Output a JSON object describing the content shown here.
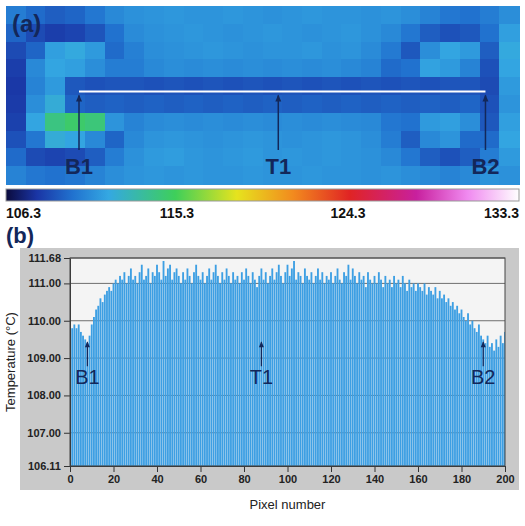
{
  "chart_data": [
    {
      "type": "heatmap",
      "title": "(a)",
      "cells": [
        [
          110.2,
          109.6,
          109.2,
          109.4,
          110.0,
          110.6,
          110.9,
          111.0,
          111.1,
          111.0,
          111.0,
          111.1,
          111.0,
          110.9,
          111.0,
          111.1,
          111.0,
          111.0,
          110.9,
          111.0,
          110.8,
          110.4,
          110.0,
          109.8,
          110.2,
          110.8
        ],
        [
          109.4,
          108.6,
          108.2,
          108.4,
          108.9,
          109.8,
          110.7,
          110.9,
          111.0,
          111.1,
          111.0,
          110.9,
          111.0,
          111.1,
          111.0,
          110.9,
          111.0,
          111.1,
          110.9,
          110.6,
          110.0,
          109.2,
          108.8,
          109.0,
          109.8,
          111.4
        ],
        [
          108.6,
          109.4,
          111.4,
          111.8,
          111.2,
          109.6,
          110.3,
          110.8,
          110.9,
          111.0,
          111.1,
          111.0,
          110.9,
          111.0,
          111.0,
          111.1,
          110.9,
          111.0,
          110.7,
          110.1,
          109.0,
          110.8,
          111.6,
          111.2,
          109.2,
          111.8
        ],
        [
          108.2,
          110.6,
          111.6,
          111.4,
          110.8,
          110.2,
          110.2,
          110.6,
          110.8,
          110.7,
          110.8,
          110.7,
          110.8,
          110.7,
          110.8,
          110.7,
          110.8,
          110.6,
          110.4,
          109.6,
          109.8,
          111.5,
          111.2,
          110.4,
          108.8,
          111.6
        ],
        [
          108.0,
          110.4,
          111.2,
          109.0,
          108.8,
          108.9,
          108.9,
          108.8,
          108.9,
          108.8,
          108.9,
          108.8,
          108.9,
          108.8,
          108.9,
          108.8,
          108.9,
          108.8,
          108.9,
          108.8,
          108.9,
          108.8,
          108.9,
          108.9,
          108.6,
          111.2
        ],
        [
          108.1,
          110.8,
          112.0,
          109.4,
          109.2,
          109.3,
          109.2,
          109.3,
          109.2,
          109.3,
          109.2,
          109.3,
          109.2,
          109.3,
          109.2,
          109.3,
          109.2,
          109.3,
          109.2,
          109.3,
          109.2,
          109.3,
          109.2,
          109.4,
          108.8,
          111.0
        ],
        [
          108.3,
          111.6,
          114.2,
          114.8,
          114.4,
          111.0,
          110.4,
          110.7,
          110.8,
          110.7,
          110.8,
          110.7,
          110.8,
          110.7,
          110.8,
          110.7,
          110.8,
          110.7,
          110.6,
          110.0,
          109.8,
          111.2,
          111.4,
          110.8,
          109.0,
          111.4
        ],
        [
          108.8,
          110.0,
          112.0,
          111.6,
          110.6,
          109.4,
          110.6,
          111.0,
          111.1,
          111.0,
          110.9,
          111.0,
          111.1,
          111.0,
          110.9,
          111.0,
          111.1,
          111.0,
          110.8,
          110.2,
          109.2,
          110.6,
          111.0,
          109.6,
          109.6,
          111.6
        ],
        [
          109.6,
          108.6,
          108.4,
          108.6,
          109.2,
          110.2,
          110.9,
          111.2,
          111.3,
          111.1,
          111.0,
          111.1,
          111.2,
          111.0,
          111.1,
          111.0,
          111.1,
          111.0,
          110.9,
          110.6,
          110.0,
          109.2,
          108.8,
          109.2,
          110.2,
          111.2
        ],
        [
          110.4,
          110.0,
          109.8,
          110.0,
          110.4,
          110.8,
          111.0,
          111.1,
          111.0,
          111.1,
          111.0,
          111.0,
          111.1,
          111.0,
          111.0,
          111.1,
          111.0,
          111.0,
          110.9,
          111.0,
          110.8,
          110.6,
          110.4,
          110.6,
          111.0,
          110.9
        ]
      ],
      "colorbar_range": [
        106.3,
        133.3
      ],
      "colorbar_ticks": [
        106.3,
        115.3,
        124.3,
        133.3
      ],
      "annotations": [
        {
          "text": "B1",
          "x": 3.7
        },
        {
          "text": "T1",
          "x": 13.8
        },
        {
          "text": "B2",
          "x": 24.3
        }
      ]
    },
    {
      "type": "bar",
      "title": "(b)",
      "xlabel": "Pixel number",
      "ylabel": "Temperature (°C)",
      "color": "#3d9fe3",
      "grid": true,
      "x": [
        0,
        1,
        2,
        3,
        4,
        5,
        6,
        7,
        8,
        9,
        10,
        11,
        12,
        13,
        14,
        15,
        16,
        17,
        18,
        19,
        20,
        21,
        22,
        23,
        24,
        25,
        26,
        27,
        28,
        29,
        30,
        31,
        32,
        33,
        34,
        35,
        36,
        37,
        38,
        39,
        40,
        41,
        42,
        43,
        44,
        45,
        46,
        47,
        48,
        49,
        50,
        51,
        52,
        53,
        54,
        55,
        56,
        57,
        58,
        59,
        60,
        61,
        62,
        63,
        64,
        65,
        66,
        67,
        68,
        69,
        70,
        71,
        72,
        73,
        74,
        75,
        76,
        77,
        78,
        79,
        80,
        81,
        82,
        83,
        84,
        85,
        86,
        87,
        88,
        89,
        90,
        91,
        92,
        93,
        94,
        95,
        96,
        97,
        98,
        99,
        100,
        101,
        102,
        103,
        104,
        105,
        106,
        107,
        108,
        109,
        110,
        111,
        112,
        113,
        114,
        115,
        116,
        117,
        118,
        119,
        120,
        121,
        122,
        123,
        124,
        125,
        126,
        127,
        128,
        129,
        130,
        131,
        132,
        133,
        134,
        135,
        136,
        137,
        138,
        139,
        140,
        141,
        142,
        143,
        144,
        145,
        146,
        147,
        148,
        149,
        150,
        151,
        152,
        153,
        154,
        155,
        156,
        157,
        158,
        159,
        160,
        161,
        162,
        163,
        164,
        165,
        166,
        167,
        168,
        169,
        170,
        171,
        172,
        173,
        174,
        175,
        176,
        177,
        178,
        179,
        180,
        181,
        182,
        183,
        184,
        185,
        186,
        187,
        188,
        189,
        190,
        191,
        192,
        193,
        194,
        195,
        196,
        197,
        198,
        199,
        200
      ],
      "values": [
        109.7,
        109.8,
        109.9,
        109.8,
        109.9,
        109.7,
        109.6,
        109.5,
        109.4,
        109.6,
        109.9,
        110.1,
        110.3,
        110.4,
        110.6,
        110.5,
        110.7,
        110.8,
        110.9,
        110.8,
        111.0,
        111.1,
        111.0,
        111.2,
        111.1,
        111.3,
        111.0,
        111.2,
        111.4,
        111.1,
        111.2,
        111.0,
        111.3,
        111.5,
        111.1,
        111.2,
        111.4,
        111.0,
        111.3,
        111.2,
        111.5,
        111.3,
        111.1,
        111.6,
        111.2,
        111.4,
        111.5,
        111.1,
        111.3,
        111.4,
        111.2,
        111.0,
        111.3,
        111.1,
        111.4,
        111.2,
        111.0,
        111.3,
        111.5,
        111.2,
        111.1,
        111.3,
        111.0,
        111.2,
        111.4,
        111.1,
        111.3,
        111.5,
        111.2,
        111.0,
        111.3,
        111.1,
        111.4,
        111.2,
        111.0,
        111.3,
        111.1,
        111.2,
        111.0,
        111.3,
        111.1,
        111.4,
        111.2,
        111.0,
        111.3,
        111.1,
        110.9,
        111.2,
        111.4,
        111.1,
        111.3,
        111.0,
        111.2,
        111.4,
        111.1,
        111.3,
        111.5,
        111.2,
        111.0,
        111.3,
        111.5,
        111.2,
        111.4,
        111.6,
        111.1,
        111.3,
        111.2,
        111.0,
        111.4,
        111.2,
        111.1,
        111.3,
        111.0,
        111.2,
        111.4,
        111.1,
        111.3,
        111.0,
        111.2,
        111.1,
        111.3,
        111.0,
        111.2,
        111.4,
        111.1,
        111.0,
        111.3,
        111.2,
        111.5,
        111.1,
        111.4,
        111.2,
        111.0,
        111.3,
        111.1,
        111.2,
        110.9,
        111.3,
        111.1,
        111.0,
        111.2,
        111.0,
        111.3,
        111.1,
        110.9,
        111.2,
        111.0,
        111.1,
        110.9,
        111.2,
        111.0,
        111.1,
        110.9,
        111.2,
        111.0,
        110.8,
        111.1,
        110.9,
        111.0,
        110.8,
        111.0,
        110.9,
        110.8,
        111.0,
        110.7,
        110.9,
        110.8,
        110.7,
        110.9,
        110.6,
        110.8,
        110.6,
        110.7,
        110.5,
        110.6,
        110.4,
        110.5,
        110.3,
        110.4,
        110.2,
        110.3,
        110.1,
        110.0,
        110.2,
        109.9,
        110.0,
        109.8,
        109.7,
        109.9,
        109.6,
        109.5,
        109.4,
        109.6,
        109.3,
        109.4,
        109.2,
        109.5,
        109.3,
        109.6,
        109.4,
        109.7
      ],
      "xlim": [
        0,
        200
      ],
      "xticks": [
        0,
        20,
        40,
        60,
        80,
        100,
        120,
        140,
        160,
        180,
        200
      ],
      "ylim": [
        106.11,
        111.68
      ],
      "yticks": [
        106.11,
        {
          "value": 107,
          "label": "107.00"
        },
        {
          "value": 108,
          "label": "108.00"
        },
        {
          "value": 109,
          "label": "109.00"
        },
        {
          "value": 110,
          "label": "110.00"
        },
        {
          "value": 111,
          "label": "111.00"
        },
        111.68
      ],
      "annotations": [
        {
          "text": "B1",
          "x": 8,
          "y": 108.3
        },
        {
          "text": "T1",
          "x": 88,
          "y": 108.3
        },
        {
          "text": "B2",
          "x": 190,
          "y": 108.3
        }
      ]
    }
  ]
}
